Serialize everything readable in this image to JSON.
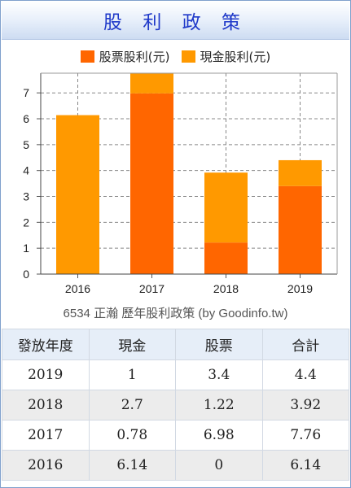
{
  "panel_title": "股 利 政 策",
  "caption": "6534 正瀚 歷年股利政策 (by Goodinfo.tw)",
  "colors": {
    "stock_dividend": "#ff6600",
    "cash_dividend": "#ff9900",
    "title": "#1f39c9"
  },
  "chart_data": {
    "type": "bar",
    "stacked": true,
    "categories": [
      "2016",
      "2017",
      "2018",
      "2019"
    ],
    "series": [
      {
        "name": "股票股利(元)",
        "values": [
          0,
          6.98,
          1.22,
          3.4
        ]
      },
      {
        "name": "現金股利(元)",
        "values": [
          6.14,
          0.78,
          2.7,
          1
        ]
      }
    ],
    "y_ticks": [
      "0",
      "1",
      "2",
      "3",
      "4",
      "5",
      "6",
      "7"
    ],
    "ylim": [
      0,
      7.76
    ],
    "grid": true,
    "legend_position": "top"
  },
  "table": {
    "headers": [
      "發放年度",
      "現金",
      "股票",
      "合計"
    ],
    "rows": [
      [
        "2019",
        "1",
        "3.4",
        "4.4"
      ],
      [
        "2018",
        "2.7",
        "1.22",
        "3.92"
      ],
      [
        "2017",
        "0.78",
        "6.98",
        "7.76"
      ],
      [
        "2016",
        "6.14",
        "0",
        "6.14"
      ]
    ]
  }
}
